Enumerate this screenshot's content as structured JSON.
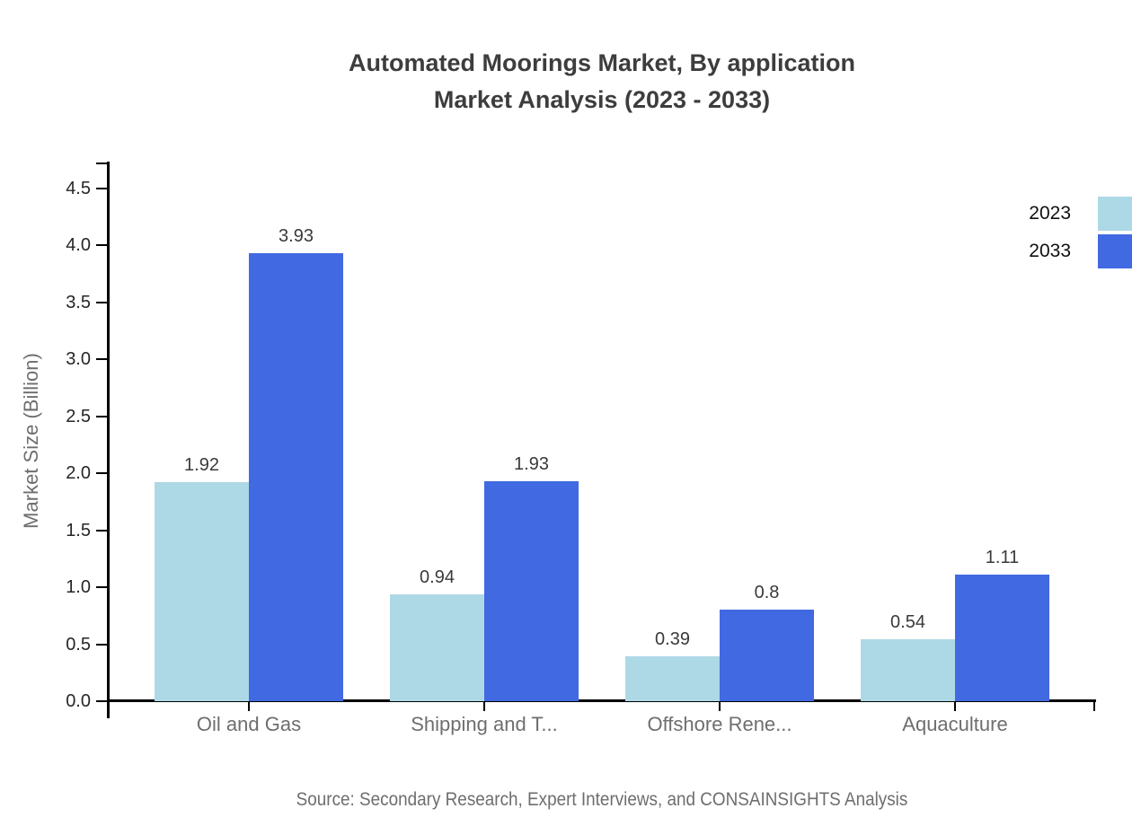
{
  "title": {
    "line1": "Automated Moorings Market, By application",
    "line2": "Market Analysis (2023 - 2033)"
  },
  "source": "Source: Secondary Research, Expert Interviews, and CONSAINSIGHTS Analysis",
  "chart_data": {
    "type": "bar",
    "title": "Automated Moorings Market, By application Market Analysis (2023 - 2033)",
    "categories": [
      "Oil and Gas",
      "Shipping and T...",
      "Offshore Rene...",
      "Aquaculture"
    ],
    "series": [
      {
        "name": "2023",
        "color": "#add8e6",
        "values": [
          1.92,
          0.94,
          0.39,
          0.54
        ],
        "labels": [
          "1.92",
          "0.94",
          "0.39",
          "0.54"
        ]
      },
      {
        "name": "2033",
        "color": "#4169e1",
        "values": [
          3.93,
          1.93,
          0.8,
          1.11
        ],
        "labels": [
          "3.93",
          "1.93",
          "0.8",
          "1.11"
        ]
      }
    ],
    "xlabel": "",
    "ylabel": "Market Size (Billion)",
    "ylim": [
      0,
      4.5
    ],
    "ytick_step": 0.5,
    "grid": false,
    "legend_position": "top-right",
    "axis_color": "#000000"
  }
}
